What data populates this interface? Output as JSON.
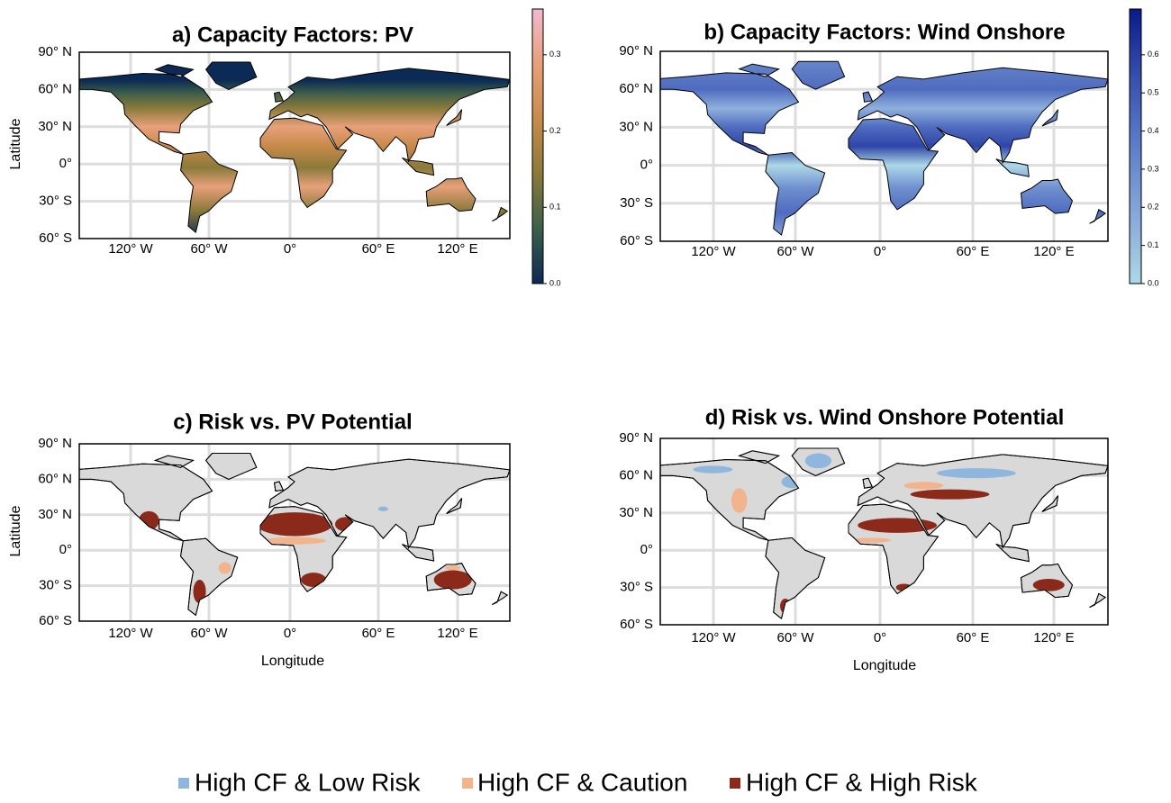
{
  "panels": [
    {
      "title": "a) Capacity Factors: PV",
      "y_axis_label": "Latitude",
      "lat_labels": [
        "90° N",
        "60° N",
        "30° N",
        "0°",
        "30° S",
        "60° S"
      ],
      "lon_labels": [
        "120° W",
        "60° W",
        "0°",
        "60° E",
        "120° E"
      ],
      "colorbar": {
        "colors": [
          "#0b2a55",
          "#3d5e4a",
          "#8a7a3a",
          "#c98b4a",
          "#e8a07a",
          "#f2b9cf"
        ],
        "lim": [
          0,
          0.36
        ],
        "ticks": [
          {
            "value": 0,
            "label": "0.0"
          },
          {
            "value": 0.1,
            "label": "0.1"
          },
          {
            "value": 0.2,
            "label": "0.2"
          },
          {
            "value": 0.3,
            "label": "0.3"
          }
        ]
      }
    },
    {
      "title": "b) Capacity Factors: Wind Onshore",
      "lat_labels": [
        "90° N",
        "60° N",
        "30° N",
        "0°",
        "30° S",
        "60° S"
      ],
      "lon_labels": [
        "120° W",
        "60° W",
        "0°",
        "60° E",
        "120° E"
      ],
      "colorbar": {
        "colors": [
          "#add8e6",
          "#8fb0dc",
          "#6f8fcf",
          "#4f6bbf",
          "#2f45a8",
          "#0a1a8a"
        ],
        "lim": [
          0,
          0.72
        ],
        "ticks": [
          {
            "value": 0,
            "label": "0.0"
          },
          {
            "value": 0.1,
            "label": "0.1"
          },
          {
            "value": 0.2,
            "label": "0.2"
          },
          {
            "value": 0.3,
            "label": "0.3"
          },
          {
            "value": 0.4,
            "label": "0.4"
          },
          {
            "value": 0.5,
            "label": "0.5"
          },
          {
            "value": 0.6,
            "label": "0.6"
          }
        ]
      }
    },
    {
      "title": "c) Risk vs. PV Potential",
      "y_axis_label": "Latitude",
      "x_axis_label": "Longitude",
      "lat_labels": [
        "90° N",
        "60° N",
        "30° N",
        "0°",
        "30° S",
        "60° S"
      ],
      "lon_labels": [
        "120° W",
        "60° W",
        "0°",
        "60° E",
        "120° E"
      ]
    },
    {
      "title": "d) Risk vs. Wind Onshore Potential",
      "x_axis_label": "Longitude",
      "lat_labels": [
        "90° N",
        "60° N",
        "30° N",
        "0°",
        "30° S",
        "60° S"
      ],
      "lon_labels": [
        "120° W",
        "60° W",
        "0°",
        "60° E",
        "120° E"
      ]
    }
  ],
  "legend": [
    {
      "label": "High CF & Low Risk",
      "color": "#8fb6dc"
    },
    {
      "label": "High CF & Caution",
      "color": "#f2b48c"
    },
    {
      "label": "High CF & High Risk",
      "color": "#8b2a1a"
    }
  ]
}
